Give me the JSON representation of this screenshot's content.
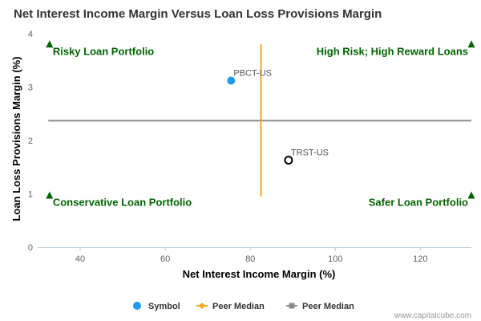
{
  "chart_data": {
    "type": "scatter",
    "title": "Net Interest Income Margin Versus Loan Loss Provisions Margin",
    "xlabel": "Net Interest Income Margin (%)",
    "ylabel": "Loan Loss Provisions Margin (%)",
    "xlim": [
      30,
      132
    ],
    "ylim": [
      0,
      4
    ],
    "xticks": [
      "40",
      "60",
      "80",
      "100",
      "120"
    ],
    "yticks": [
      "0",
      "1",
      "2",
      "3",
      "4"
    ],
    "points": [
      {
        "label": "PBCT-US",
        "x": 75.5,
        "y": 3.12,
        "style": "filled",
        "color": "#1e9bea"
      },
      {
        "label": "TRST-US",
        "x": 89,
        "y": 1.63,
        "style": "hollow",
        "color": "#000000"
      }
    ],
    "peer_median_x": {
      "value": 82.5,
      "y_range": [
        0.95,
        3.8
      ],
      "color": "#f5a623"
    },
    "peer_median_y": {
      "value": 2.37,
      "x_range": [
        32.5,
        132
      ],
      "color": "#8c8c8c"
    },
    "quadrants": [
      {
        "label": "Risky Loan Portfolio",
        "marker_x": 32.8,
        "marker_y": 3.8,
        "position": "top-left"
      },
      {
        "label": "High Risk; High Reward Loans",
        "marker_x": 132,
        "marker_y": 3.8,
        "position": "top-right"
      },
      {
        "label": "Conservative Loan Portfolio",
        "marker_x": 32.8,
        "marker_y": 0.97,
        "position": "bottom-left"
      },
      {
        "label": "Safer Loan Portfolio",
        "marker_x": 132,
        "marker_y": 0.97,
        "position": "bottom-right"
      }
    ],
    "quadrant_color": "#006400",
    "legend": {
      "placement": "bottom-center",
      "items": [
        {
          "label": "Symbol",
          "marker": "circle",
          "color": "#1e9bea"
        },
        {
          "label": "Peer Median",
          "marker": "line-diamond",
          "color": "#f5a623"
        },
        {
          "label": "Peer Median",
          "marker": "line-square",
          "color": "#8c8c8c"
        }
      ]
    },
    "grid": false
  },
  "credit": "www.capitalcube.com"
}
